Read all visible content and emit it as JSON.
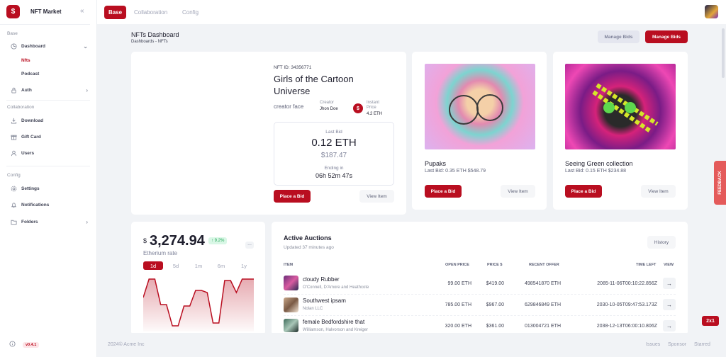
{
  "brand": {
    "name": "NFT Market",
    "logo": "$"
  },
  "sidebar": {
    "sections": {
      "base": "Base",
      "collaboration": "Collaboration",
      "config": "Config"
    },
    "dashboard": "Dashboard",
    "nfts": "Nfts",
    "podcast": "Podcast",
    "auth": "Auth",
    "download": "Download",
    "gift_card": "Gift Card",
    "users": "Users",
    "settings": "Settings",
    "notifications": "Notifications",
    "folders": "Folders",
    "version": "v0.4.1"
  },
  "topbar": {
    "tabs": [
      "Base",
      "Collaboration",
      "Config"
    ]
  },
  "header": {
    "title": "NFTs Dashboard",
    "breadcrumb": "Dashboards  - NFTs",
    "manage_bids_secondary": "Manage Bids",
    "manage_bids_primary": "Manage Bids"
  },
  "featured": {
    "nft_id": "NFT ID: 34356771",
    "title": "Girls of the Cartoon Universe",
    "creator_img_alt": "creator face",
    "creator_label": "Creator",
    "creator_name": "Jhon Doe",
    "price_icon": "$",
    "price_label": "Instant Price",
    "price_value": "4.2 ETH",
    "last_bid_label": "Last Bid",
    "last_bid_eth": "0.12 ETH",
    "last_bid_usd": "$187.47",
    "ending_label": "Ending in",
    "ending_time": "06h 52m 47s",
    "place_bid": "Place a Bid",
    "view_item": "View Item"
  },
  "cards": [
    {
      "name": "Pupaks",
      "bid": "Last Bid: 0.35 ETH $548.79",
      "place_bid": "Place a Bid",
      "view_item": "View Item"
    },
    {
      "name": "Seeing Green collection",
      "bid": "Last Bid: 0.15 ETH $234.88",
      "place_bid": "Place a Bid",
      "view_item": "View Item"
    }
  ],
  "ethereum": {
    "currency": "$",
    "value": "3,274.94",
    "change": "↑ 9.2%",
    "more": "...",
    "label": "Etherium rate",
    "ranges": [
      "1d",
      "5d",
      "1m",
      "6m",
      "1y"
    ],
    "active_range": "1d"
  },
  "chart_data": {
    "type": "area",
    "title": "",
    "x": [
      0,
      1,
      2,
      3,
      4,
      5,
      6,
      7,
      8,
      9,
      10,
      11,
      12,
      13,
      14,
      15,
      16,
      17,
      18,
      19
    ],
    "values": [
      48,
      74,
      74,
      38,
      38,
      8,
      8,
      36,
      36,
      58,
      58,
      55,
      12,
      12,
      72,
      72,
      55,
      74,
      74,
      74
    ],
    "ylim": [
      0,
      84
    ],
    "color": "#b90e20"
  },
  "auctions": {
    "title": "Active Auctions",
    "updated": "Updated 37 minutes ago",
    "history": "History",
    "headers": {
      "item": "ITEM",
      "open_price": "OPEN PRICE",
      "price_usd": "PRICE $",
      "recent_offer": "RECENT OFFER",
      "time_left": "TIME LEFT",
      "view": "VIEW"
    },
    "rows": [
      {
        "name": "cloudy Rubber",
        "company": "O'Connell, D'Amore and Heathcote",
        "open_price": "99.00 ETH",
        "price_usd": "$419.00",
        "recent_offer": "498541870 ETH",
        "time_left": "2085-11-06T00:10:22.856Z",
        "go": "→"
      },
      {
        "name": "Southwest ipsam",
        "company": "Nolan LLC",
        "open_price": "785.00 ETH",
        "price_usd": "$967.00",
        "recent_offer": "629846849 ETH",
        "time_left": "2030-10-05T09:47:53.173Z",
        "go": "→"
      },
      {
        "name": "female Bedfordshire that",
        "company": "Williamson, Halvorson and Kreiger",
        "open_price": "320.00 ETH",
        "price_usd": "$361.00",
        "recent_offer": "013004721 ETH",
        "time_left": "2038-12-13T06:00:10.806Z",
        "go": "→"
      }
    ]
  },
  "footer": {
    "copyright": "2024© Acme Inc",
    "links": [
      "Issues",
      "Sponsor",
      "Starred"
    ]
  },
  "feedback": "FEEDBACK",
  "zoom": "2x1",
  "colors": {
    "accent": "#b90e20",
    "positive": "#27a85a"
  }
}
